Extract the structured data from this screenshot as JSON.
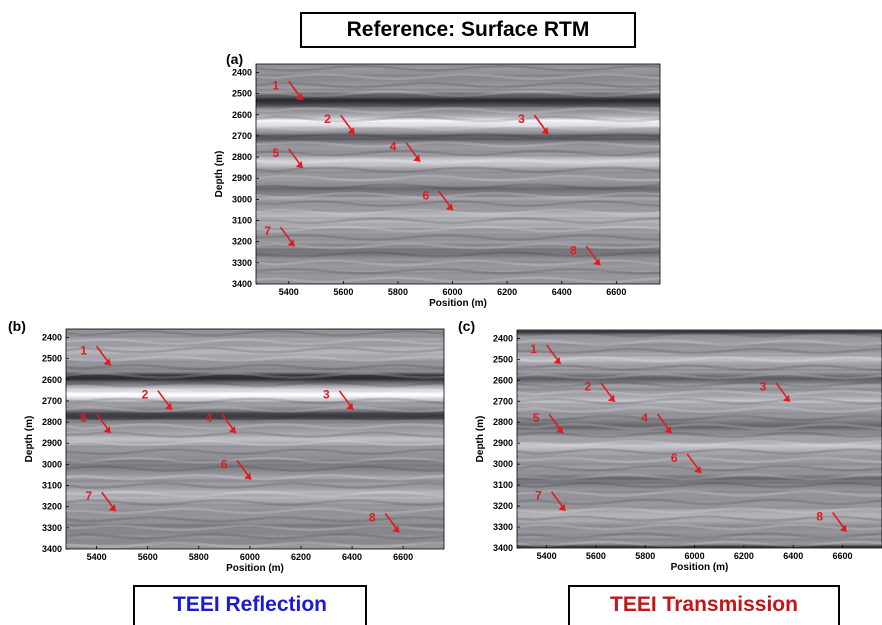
{
  "titles": {
    "reference": "Reference: Surface RTM",
    "reflection": "TEEI Reflection",
    "transmission": "TEEI Transmission"
  },
  "colors": {
    "reflection_title": "#1b1bd6",
    "transmission_title": "#c0171b",
    "annotation": "#e31a1c"
  },
  "chart_data": [
    {
      "type": "heatmap",
      "panel_label": "(a)",
      "title": "Reference: Surface RTM",
      "xlabel": "Position (m)",
      "ylabel": "Depth (m)",
      "xlim": [
        5280,
        6760
      ],
      "ylim": [
        3400,
        2360
      ],
      "x_ticks": [
        5400,
        5600,
        5800,
        6000,
        6200,
        6400,
        6600
      ],
      "y_ticks": [
        2400,
        2500,
        2600,
        2700,
        2800,
        2900,
        3000,
        3100,
        3200,
        3300,
        3400
      ],
      "colormap": "grayscale",
      "bands": [
        {
          "depth": 2535,
          "amp": -1.0,
          "width": 28
        },
        {
          "depth": 2635,
          "amp": 0.9,
          "width": 26
        },
        {
          "depth": 2710,
          "amp": -0.6,
          "width": 20
        },
        {
          "depth": 2820,
          "amp": 0.55,
          "width": 22
        },
        {
          "depth": 2950,
          "amp": -0.35,
          "width": 25
        },
        {
          "depth": 3100,
          "amp": 0.3,
          "width": 30
        },
        {
          "depth": 3250,
          "amp": -0.3,
          "width": 30
        }
      ],
      "annotations": [
        {
          "label": "1",
          "x": 5400,
          "depth": 2470
        },
        {
          "label": "2",
          "x": 5590,
          "depth": 2630
        },
        {
          "label": "3",
          "x": 6300,
          "depth": 2630
        },
        {
          "label": "5",
          "x": 5400,
          "depth": 2790
        },
        {
          "label": "4",
          "x": 5830,
          "depth": 2760
        },
        {
          "label": "6",
          "x": 5950,
          "depth": 2990
        },
        {
          "label": "7",
          "x": 5370,
          "depth": 3160
        },
        {
          "label": "8",
          "x": 6490,
          "depth": 3250
        }
      ]
    },
    {
      "type": "heatmap",
      "panel_label": "(b)",
      "title": "TEEI Reflection",
      "xlabel": "Position (m)",
      "ylabel": "Depth (m)",
      "xlim": [
        5280,
        6760
      ],
      "ylim": [
        3400,
        2360
      ],
      "x_ticks": [
        5400,
        5600,
        5800,
        6000,
        6200,
        6400,
        6600
      ],
      "y_ticks": [
        2400,
        2500,
        2600,
        2700,
        2800,
        2900,
        3000,
        3100,
        3200,
        3300,
        3400
      ],
      "colormap": "grayscale",
      "bands": [
        {
          "depth": 2460,
          "amp": 0.3,
          "width": 22
        },
        {
          "depth": 2590,
          "amp": -1.0,
          "width": 25
        },
        {
          "depth": 2670,
          "amp": 1.0,
          "width": 26
        },
        {
          "depth": 2770,
          "amp": -0.9,
          "width": 22
        },
        {
          "depth": 2880,
          "amp": 0.35,
          "width": 25
        },
        {
          "depth": 3000,
          "amp": -0.3,
          "width": 28
        },
        {
          "depth": 3150,
          "amp": 0.25,
          "width": 30
        },
        {
          "depth": 3300,
          "amp": -0.25,
          "width": 30
        }
      ],
      "annotations": [
        {
          "label": "1",
          "x": 5400,
          "depth": 2470
        },
        {
          "label": "2",
          "x": 5640,
          "depth": 2680
        },
        {
          "label": "3",
          "x": 6350,
          "depth": 2680
        },
        {
          "label": "5",
          "x": 5400,
          "depth": 2790
        },
        {
          "label": "4",
          "x": 5890,
          "depth": 2790
        },
        {
          "label": "6",
          "x": 5950,
          "depth": 3010
        },
        {
          "label": "7",
          "x": 5420,
          "depth": 3160
        },
        {
          "label": "8",
          "x": 6530,
          "depth": 3260
        }
      ]
    },
    {
      "type": "heatmap",
      "panel_label": "(c)",
      "title": "TEEI Transmission",
      "xlabel": "Position (m)",
      "ylabel": "Depth (m)",
      "xlim": [
        5280,
        6760
      ],
      "ylim": [
        3400,
        2360
      ],
      "x_ticks": [
        5400,
        5600,
        5800,
        6000,
        6200,
        6400,
        6600
      ],
      "y_ticks": [
        2400,
        2500,
        2600,
        2700,
        2800,
        2900,
        3000,
        3100,
        3200,
        3300,
        3400
      ],
      "colormap": "grayscale",
      "bands": [
        {
          "depth": 2370,
          "amp": -0.9,
          "width": 10
        },
        {
          "depth": 2500,
          "amp": 0.35,
          "width": 22
        },
        {
          "depth": 2590,
          "amp": -0.5,
          "width": 22
        },
        {
          "depth": 2700,
          "amp": 0.3,
          "width": 26
        },
        {
          "depth": 2820,
          "amp": -0.45,
          "width": 24
        },
        {
          "depth": 2920,
          "amp": 0.5,
          "width": 24
        },
        {
          "depth": 3080,
          "amp": -0.3,
          "width": 30
        },
        {
          "depth": 3250,
          "amp": 0.25,
          "width": 30
        },
        {
          "depth": 3395,
          "amp": -1.0,
          "width": 8
        }
      ],
      "annotations": [
        {
          "label": "1",
          "x": 5400,
          "depth": 2460
        },
        {
          "label": "2",
          "x": 5620,
          "depth": 2640
        },
        {
          "label": "3",
          "x": 6330,
          "depth": 2640
        },
        {
          "label": "5",
          "x": 5410,
          "depth": 2790
        },
        {
          "label": "4",
          "x": 5850,
          "depth": 2790
        },
        {
          "label": "6",
          "x": 5970,
          "depth": 2980
        },
        {
          "label": "7",
          "x": 5420,
          "depth": 3160
        },
        {
          "label": "8",
          "x": 6560,
          "depth": 3260
        }
      ]
    }
  ]
}
